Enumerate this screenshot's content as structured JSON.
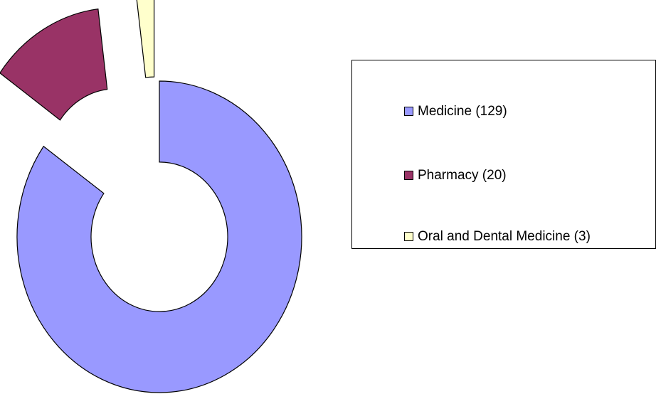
{
  "chart_data": {
    "type": "donut",
    "categories": [
      "Medicine (129)",
      "Pharmacy (20)",
      "Oral and Dental Medicine (3)"
    ],
    "values": [
      129,
      20,
      3
    ],
    "colors": [
      "#9999ff",
      "#993366",
      "#ffffcc"
    ],
    "legend": "right"
  }
}
